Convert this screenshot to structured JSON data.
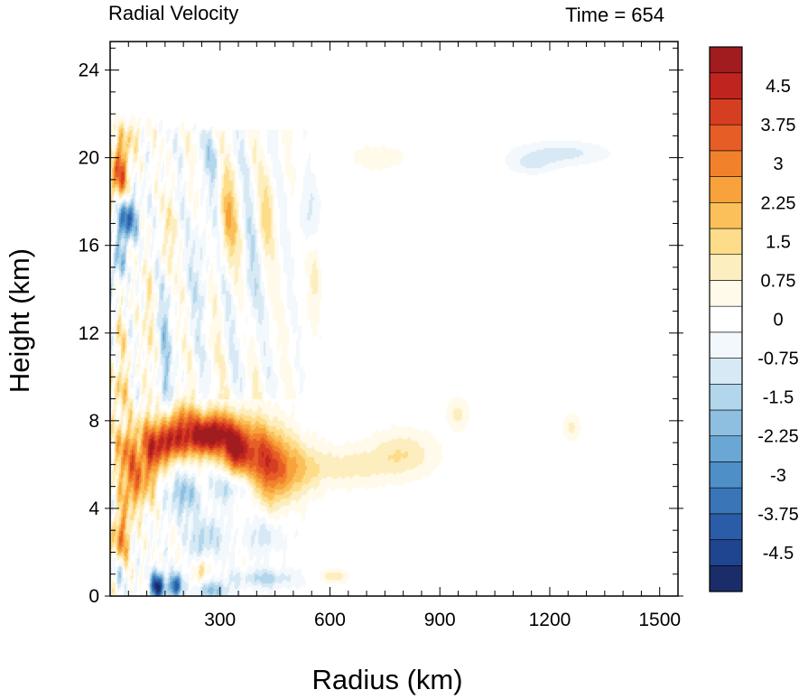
{
  "chart_data": {
    "type": "heatmap",
    "title": "Radial Velocity",
    "subtitle": "Time = 654",
    "xlabel": "Radius (km)",
    "ylabel": "Height (km)",
    "xlim": [
      0,
      1550
    ],
    "ylim": [
      0,
      25.3
    ],
    "xticks": [
      "300",
      "600",
      "900",
      "1200",
      "1500"
    ],
    "xtick_values": [
      300,
      600,
      900,
      1200,
      1500
    ],
    "yticks": [
      "0",
      "4",
      "8",
      "12",
      "16",
      "20",
      "24"
    ],
    "ytick_values": [
      0,
      4,
      8,
      12,
      16,
      20,
      24
    ],
    "colorbar": {
      "min": -5.25,
      "max": 5.25,
      "step": 0.25,
      "labels": [
        "4.5",
        "3.75",
        "3",
        "2.25",
        "1.5",
        "0.75",
        "0",
        "-0.75",
        "-1.5",
        "-2.25",
        "-3",
        "-3.75",
        "-4.5"
      ],
      "label_values": [
        4.5,
        3.75,
        3,
        2.25,
        1.5,
        0.75,
        0,
        -0.75,
        -1.5,
        -2.25,
        -3,
        -3.75,
        -4.5
      ],
      "colors": [
        "#1a2d69",
        "#1f4590",
        "#2b5ca7",
        "#3a75b8",
        "#4f8fc8",
        "#6aa7d5",
        "#8ebfe0",
        "#b2d6ec",
        "#d6e9f4",
        "#f2f8fc",
        "#ffffff",
        "#fffaea",
        "#fdeec0",
        "#fddc8a",
        "#fbc05a",
        "#f8a23b",
        "#f2812c",
        "#e65e26",
        "#d63e22",
        "#c0241f",
        "#a01c1f"
      ]
    },
    "features": [
      {
        "r": 25,
        "z": 19.3,
        "sr": 18,
        "sz": 1.0,
        "v": 3.6
      },
      {
        "r": 45,
        "z": 17.2,
        "sr": 20,
        "sz": 0.7,
        "v": -4.0
      },
      {
        "r": 20,
        "z": 15.2,
        "sr": 14,
        "sz": 0.6,
        "v": -1.8
      },
      {
        "r": 30,
        "z": 12.0,
        "sr": 12,
        "sz": 0.8,
        "v": 1.0
      },
      {
        "r": 30,
        "z": 9.5,
        "sr": 15,
        "sz": 0.8,
        "v": 1.6
      },
      {
        "r": 45,
        "z": 6.6,
        "sr": 25,
        "sz": 1.0,
        "v": 2.6
      },
      {
        "r": 60,
        "z": 4.9,
        "sr": 20,
        "sz": 0.8,
        "v": 2.2
      },
      {
        "r": 30,
        "z": 2.6,
        "sr": 16,
        "sz": 1.0,
        "v": 3.0
      },
      {
        "r": 25,
        "z": 1.2,
        "sr": 15,
        "sz": 0.6,
        "v": -1.4
      },
      {
        "r": 105,
        "z": 6.3,
        "sr": 22,
        "sz": 1.3,
        "v": 2.8
      },
      {
        "r": 150,
        "z": 7.0,
        "sr": 28,
        "sz": 0.7,
        "v": 4.2
      },
      {
        "r": 220,
        "z": 7.2,
        "sr": 35,
        "sz": 0.6,
        "v": 3.8
      },
      {
        "r": 285,
        "z": 7.4,
        "sr": 30,
        "sz": 0.7,
        "v": 4.8
      },
      {
        "r": 345,
        "z": 6.8,
        "sr": 25,
        "sz": 0.9,
        "v": 4.5
      },
      {
        "r": 400,
        "z": 6.5,
        "sr": 30,
        "sz": 1.1,
        "v": 2.6
      },
      {
        "r": 450,
        "z": 5.9,
        "sr": 35,
        "sz": 1.2,
        "v": 3.0
      },
      {
        "r": 520,
        "z": 5.8,
        "sr": 40,
        "sz": 0.9,
        "v": 1.4
      },
      {
        "r": 650,
        "z": 5.9,
        "sr": 80,
        "sz": 0.6,
        "v": 1.0
      },
      {
        "r": 800,
        "z": 6.5,
        "sr": 60,
        "sz": 0.7,
        "v": 1.2
      },
      {
        "r": 950,
        "z": 8.3,
        "sr": 20,
        "sz": 0.5,
        "v": 0.9
      },
      {
        "r": 1260,
        "z": 7.7,
        "sr": 15,
        "sz": 0.4,
        "v": 0.9
      },
      {
        "r": 200,
        "z": 4.6,
        "sr": 30,
        "sz": 0.7,
        "v": -1.8
      },
      {
        "r": 330,
        "z": 5.0,
        "sr": 35,
        "sz": 0.5,
        "v": -1.6
      },
      {
        "r": 260,
        "z": 2.6,
        "sr": 35,
        "sz": 0.7,
        "v": -1.5
      },
      {
        "r": 130,
        "z": 0.45,
        "sr": 14,
        "sz": 0.45,
        "v": -5.0
      },
      {
        "r": 180,
        "z": 0.45,
        "sr": 12,
        "sz": 0.4,
        "v": -4.2
      },
      {
        "r": 280,
        "z": 0.25,
        "sr": 30,
        "sz": 0.3,
        "v": -2.0
      },
      {
        "r": 420,
        "z": 0.8,
        "sr": 60,
        "sz": 0.3,
        "v": -1.4
      },
      {
        "r": 610,
        "z": 0.9,
        "sr": 25,
        "sz": 0.2,
        "v": 1.2
      },
      {
        "r": 250,
        "z": 1.2,
        "sr": 10,
        "sz": 0.4,
        "v": 2.0
      },
      {
        "r": 420,
        "z": 2.8,
        "sr": 40,
        "sz": 0.6,
        "v": -1.0
      },
      {
        "r": 150,
        "z": 11.0,
        "sr": 12,
        "sz": 3.0,
        "v": -1.4
      },
      {
        "r": 105,
        "z": 12.5,
        "sr": 10,
        "sz": 2.0,
        "v": 1.0
      },
      {
        "r": 160,
        "z": 16.5,
        "sr": 12,
        "sz": 1.4,
        "v": 1.2
      },
      {
        "r": 250,
        "z": 15.5,
        "sr": 18,
        "sz": 2.0,
        "v": -1.0
      },
      {
        "r": 320,
        "z": 17.0,
        "sr": 18,
        "sz": 1.5,
        "v": 1.8
      },
      {
        "r": 380,
        "z": 14.0,
        "sr": 15,
        "sz": 2.0,
        "v": -0.9
      },
      {
        "r": 430,
        "z": 17.5,
        "sr": 15,
        "sz": 1.3,
        "v": 1.1
      },
      {
        "r": 560,
        "z": 14.5,
        "sr": 12,
        "sz": 1.3,
        "v": 0.9
      },
      {
        "r": 540,
        "z": 17.5,
        "sr": 20,
        "sz": 1.0,
        "v": -0.8
      },
      {
        "r": 730,
        "z": 20.0,
        "sr": 50,
        "sz": 0.4,
        "v": 0.6
      },
      {
        "r": 1230,
        "z": 20.2,
        "sr": 80,
        "sz": 0.35,
        "v": -1.0
      },
      {
        "r": 1150,
        "z": 19.7,
        "sr": 40,
        "sz": 0.3,
        "v": -0.8
      },
      {
        "r": 60,
        "z": 21.0,
        "sr": 25,
        "sz": 0.5,
        "v": 1.0
      },
      {
        "r": 280,
        "z": 20.0,
        "sr": 25,
        "sz": 0.7,
        "v": -0.8
      },
      {
        "r": 200,
        "z": 8.2,
        "sr": 30,
        "sz": 0.5,
        "v": 2.0
      }
    ],
    "grid": false,
    "legend": "right"
  }
}
